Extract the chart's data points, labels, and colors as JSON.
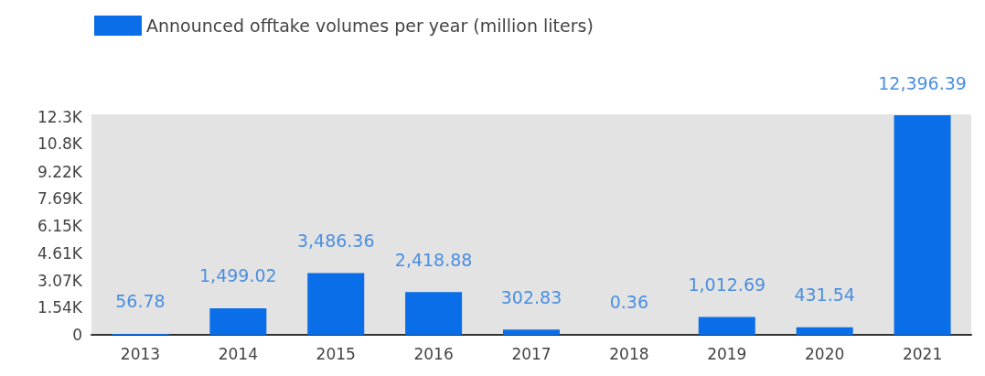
{
  "chart_data": {
    "type": "bar",
    "categories": [
      "2013",
      "2014",
      "2015",
      "2016",
      "2017",
      "2018",
      "2019",
      "2020",
      "2021"
    ],
    "series": [
      {
        "name": "Announced offtake volumes per year (million liters)",
        "color": "#0a6ee8",
        "values": [
          56.78,
          1499.02,
          3486.36,
          2418.88,
          302.83,
          0.36,
          1012.69,
          431.54,
          12396.39
        ],
        "value_labels": [
          "56.78",
          "1,499.02",
          "3,486.36",
          "2,418.88",
          "302.83",
          "0.36",
          "1,012.69",
          "431.54",
          "12,396.39"
        ]
      }
    ],
    "ylim": [
      0,
      12450
    ],
    "yticks": [
      0,
      {
        "value": 1540,
        "label": "1.54K"
      },
      {
        "value": 3070,
        "label": "3.07K"
      },
      {
        "value": 4610,
        "label": "4.61K"
      },
      {
        "value": 6150,
        "label": "6.15K"
      },
      {
        "value": 7690,
        "label": "7.69K"
      },
      {
        "value": 9220,
        "label": "9.22K"
      },
      {
        "value": 10800,
        "label": "10.8K"
      },
      {
        "value": 12300,
        "label": "12.3K"
      }
    ],
    "grid": false,
    "legend": "top left"
  }
}
